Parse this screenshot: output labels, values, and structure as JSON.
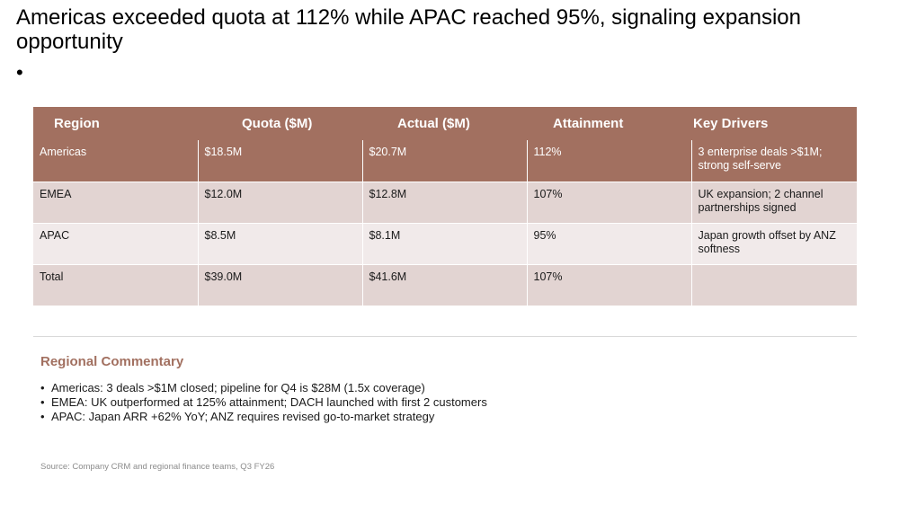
{
  "slide": {
    "title": "Americas exceeded quota at 112% while APAC reached 95%, signaling expansion opportunity",
    "title_bullet": "•"
  },
  "table": {
    "headers": [
      "Region",
      "Quota ($M)",
      "Actual ($M)",
      "Attainment",
      "Key Drivers"
    ],
    "rows": [
      [
        "Americas",
        "$18.5M",
        "$20.7M",
        "112%",
        "3 enterprise deals >$1M; strong self-serve"
      ],
      [
        "EMEA",
        "$12.0M",
        "$12.8M",
        "107%",
        "UK expansion; 2 channel partnerships signed"
      ],
      [
        "APAC",
        "$8.5M",
        "$8.1M",
        "95%",
        "Japan growth offset by ANZ softness"
      ],
      [
        "Total",
        "$39.0M",
        "$41.6M",
        "107%",
        ""
      ]
    ],
    "header_color": "#a27060",
    "row_colors": [
      "#a27060",
      "#e2d4d2",
      "#f1eaea",
      "#e2d4d2"
    ]
  },
  "commentary": {
    "heading": "Regional Commentary",
    "items": [
      "Americas: 3 deals >$1M closed; pipeline for Q4 is $28M (1.5x coverage)",
      "EMEA: UK outperformed at 125% attainment; DACH launched with first 2 customers",
      "APAC: Japan ARR +62% YoY; ANZ requires revised go-to-market strategy"
    ]
  },
  "footer": {
    "source": "Source: Company CRM and regional finance teams, Q3 FY26"
  }
}
